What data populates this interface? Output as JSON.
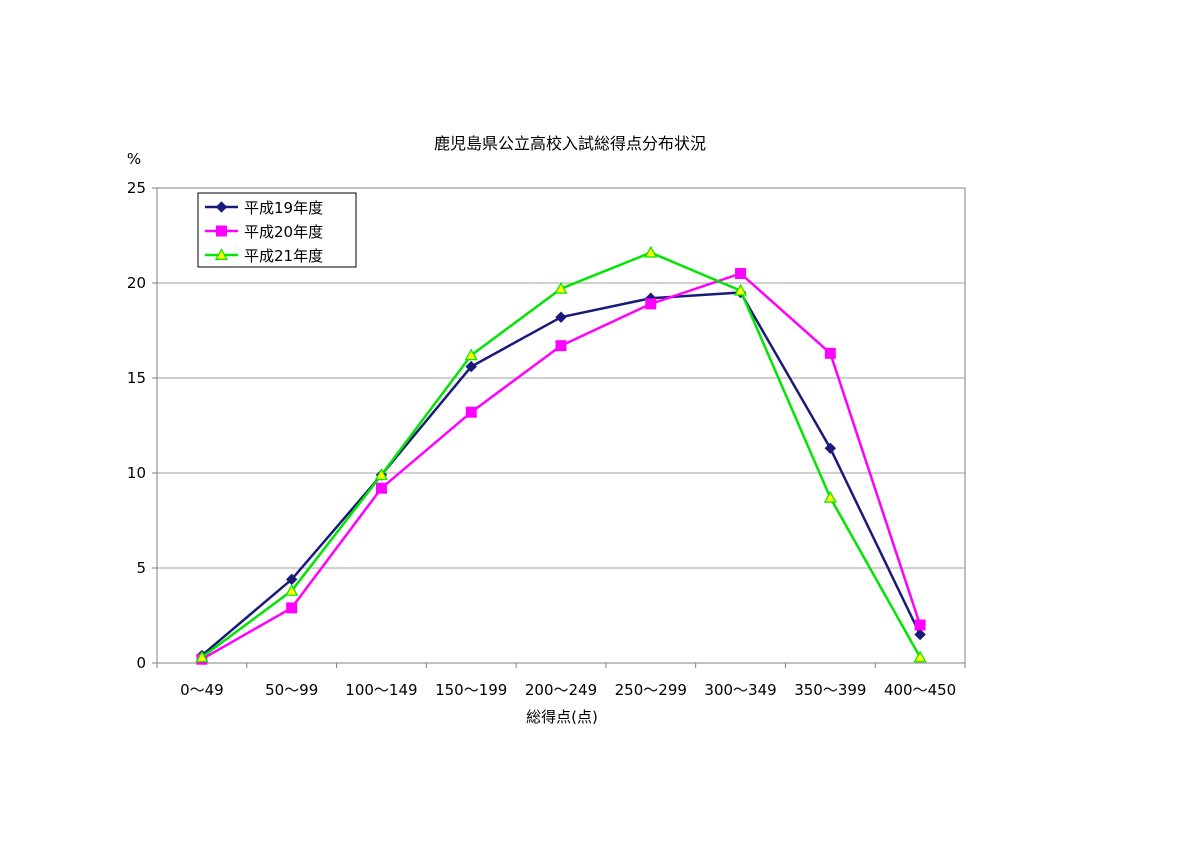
{
  "chart_data": {
    "type": "line",
    "title": "鹿児島県公立高校入試総得点分布状況",
    "xlabel": "総得点(点)",
    "ylabel": "%",
    "ylim": [
      0,
      25
    ],
    "yticks": [
      "0",
      "5",
      "10",
      "15",
      "20",
      "25"
    ],
    "categories": [
      "0〜49",
      "50〜99",
      "100〜149",
      "150〜199",
      "200〜249",
      "250〜299",
      "300〜349",
      "350〜399",
      "400〜450"
    ],
    "grid": "horizontal",
    "legend_position": "top-left",
    "series": [
      {
        "name": "平成19年度",
        "color": "#1a1a7a",
        "marker": "diamond",
        "values": [
          0.4,
          4.4,
          9.9,
          15.6,
          18.2,
          19.2,
          19.5,
          11.3,
          1.5
        ]
      },
      {
        "name": "平成20年度",
        "color": "#ff00ff",
        "marker": "square",
        "values": [
          0.2,
          2.9,
          9.2,
          13.2,
          16.7,
          18.9,
          20.5,
          16.3,
          2.0
        ]
      },
      {
        "name": "平成21年度",
        "color": "#00e600",
        "marker": "triangle",
        "marker_fill": "#ffff00",
        "values": [
          0.3,
          3.8,
          9.9,
          16.2,
          19.7,
          21.6,
          19.6,
          8.7,
          0.3
        ]
      }
    ]
  }
}
